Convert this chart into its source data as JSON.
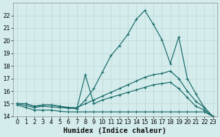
{
  "xlabel": "Humidex (Indice chaleur)",
  "bg_color": "#d4ecec",
  "grid_color": "#b8d8d8",
  "line_color": "#1a6b6b",
  "curve_peak_x": [
    0,
    1,
    2,
    3,
    4,
    5,
    6,
    7,
    8,
    9,
    10,
    11,
    12,
    13,
    14,
    15,
    16,
    17,
    18,
    19,
    20,
    21,
    22,
    23
  ],
  "curve_peak_y": [
    15.0,
    15.0,
    14.8,
    14.9,
    14.9,
    14.8,
    14.7,
    14.6,
    15.3,
    16.2,
    17.5,
    18.8,
    19.6,
    20.5,
    21.7,
    22.4,
    21.3,
    20.1,
    18.2,
    20.3,
    17.0,
    15.8,
    14.7,
    14.0
  ],
  "curve_diag_x": [
    0,
    1,
    2,
    3,
    4,
    5,
    6,
    7,
    8,
    9,
    10,
    11,
    12,
    13,
    14,
    15,
    16,
    17,
    18,
    19,
    20,
    21,
    22,
    23
  ],
  "curve_diag_y": [
    15.0,
    15.0,
    14.8,
    14.9,
    14.9,
    14.8,
    14.7,
    14.7,
    15.0,
    15.3,
    15.6,
    15.9,
    16.2,
    16.5,
    16.8,
    17.1,
    17.3,
    17.4,
    17.6,
    17.0,
    16.0,
    15.2,
    14.7,
    14.0
  ],
  "curve_spike_x": [
    0,
    1,
    2,
    3,
    4,
    5,
    6,
    7,
    8,
    9,
    10,
    11,
    12,
    13,
    14,
    15,
    16,
    17,
    18,
    19,
    20,
    21,
    22,
    23
  ],
  "curve_spike_y": [
    15.0,
    14.85,
    14.7,
    14.8,
    14.75,
    14.7,
    14.65,
    14.6,
    17.3,
    15.0,
    15.3,
    15.5,
    15.7,
    15.9,
    16.1,
    16.3,
    16.5,
    16.6,
    16.7,
    16.2,
    15.5,
    14.8,
    14.5,
    14.0
  ],
  "curve_flat_x": [
    0,
    1,
    2,
    3,
    4,
    5,
    6,
    7,
    8,
    9,
    10,
    11,
    12,
    13,
    14,
    15,
    16,
    17,
    18,
    19,
    20,
    21,
    22,
    23
  ],
  "curve_flat_y": [
    14.9,
    14.7,
    14.5,
    14.5,
    14.5,
    14.4,
    14.35,
    14.35,
    14.35,
    14.35,
    14.35,
    14.35,
    14.35,
    14.35,
    14.35,
    14.35,
    14.35,
    14.35,
    14.35,
    14.35,
    14.35,
    14.35,
    14.35,
    14.0
  ],
  "xlim": [
    -0.5,
    23.5
  ],
  "ylim": [
    14.0,
    23.0
  ],
  "xticks": [
    0,
    1,
    2,
    3,
    4,
    5,
    6,
    7,
    8,
    9,
    10,
    11,
    12,
    13,
    14,
    15,
    16,
    17,
    18,
    19,
    20,
    21,
    22,
    23
  ],
  "yticks": [
    14,
    15,
    16,
    17,
    18,
    19,
    20,
    21,
    22
  ],
  "tick_fontsize": 6.0,
  "xlabel_fontsize": 7.5
}
